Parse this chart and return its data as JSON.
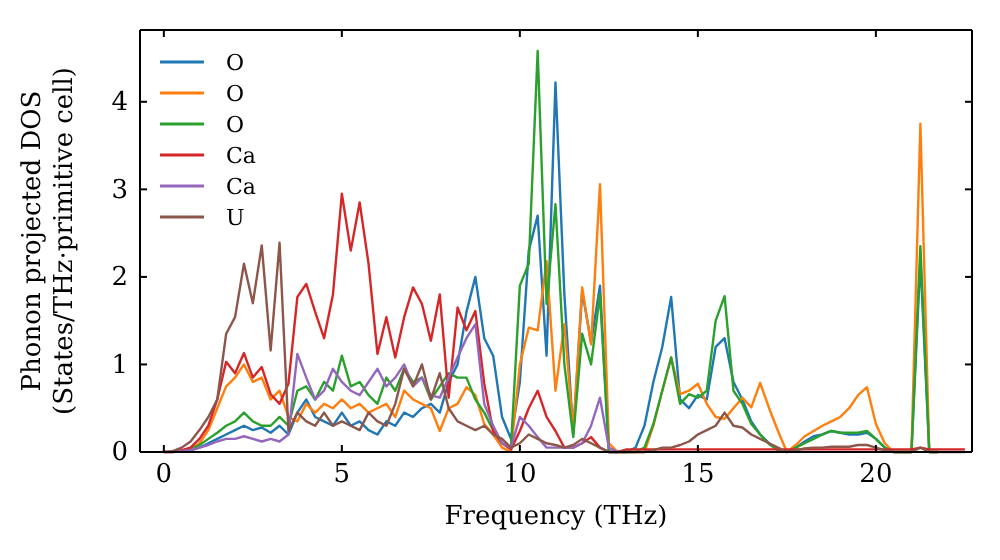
{
  "chart_data": {
    "type": "line",
    "xlabel": "Frequency (THz)",
    "ylabel": "Phonon projected DOS\n(States/THz·primitive cell)",
    "x": [
      0,
      0.25,
      0.5,
      0.75,
      1,
      1.25,
      1.5,
      1.75,
      2,
      2.25,
      2.5,
      2.75,
      3,
      3.25,
      3.5,
      3.75,
      4,
      4.25,
      4.5,
      4.75,
      5,
      5.25,
      5.5,
      5.75,
      6,
      6.25,
      6.5,
      6.75,
      7,
      7.25,
      7.5,
      7.75,
      8,
      8.25,
      8.5,
      8.75,
      9,
      9.25,
      9.5,
      9.75,
      10,
      10.25,
      10.5,
      10.75,
      11,
      11.25,
      11.5,
      11.75,
      12,
      12.25,
      12.5,
      12.75,
      13,
      13.25,
      13.5,
      13.75,
      14,
      14.25,
      14.5,
      14.75,
      15,
      15.25,
      15.5,
      15.75,
      16,
      16.25,
      16.5,
      16.75,
      17,
      17.25,
      17.5,
      17.75,
      18,
      18.25,
      18.5,
      18.75,
      19,
      19.25,
      19.5,
      19.75,
      20,
      20.25,
      20.5,
      20.75,
      21,
      21.25,
      21.5,
      21.75,
      22,
      22.25,
      22.5
    ],
    "series": [
      {
        "name": "O",
        "color": "#1f77b4",
        "values": [
          null,
          null,
          0.01,
          0.02,
          0.05,
          0.1,
          0.15,
          0.2,
          0.25,
          0.3,
          0.25,
          0.28,
          0.22,
          0.3,
          0.2,
          0.45,
          0.6,
          0.4,
          0.35,
          0.3,
          0.45,
          0.3,
          0.35,
          0.25,
          0.2,
          0.35,
          0.3,
          0.45,
          0.4,
          0.5,
          0.55,
          0.45,
          0.8,
          1.0,
          1.6,
          2.0,
          1.3,
          1.1,
          0.4,
          0.15,
          0.8,
          2.3,
          2.7,
          1.1,
          4.22,
          1.8,
          0.2,
          1.84,
          1.25,
          1.9,
          0,
          0,
          0,
          0.05,
          0.3,
          0.8,
          1.2,
          1.77,
          0.6,
          0.5,
          0.65,
          0.6,
          1.2,
          1.3,
          0.8,
          0.6,
          0.35,
          0.2,
          0.1,
          0.02,
          0,
          0.05,
          0.12,
          0.18,
          0.2,
          0.24,
          0.22,
          0.2,
          0.2,
          0.22,
          0.15,
          0.05,
          0,
          0,
          0,
          2.2,
          0,
          0,
          null,
          null,
          null
        ]
      },
      {
        "name": "O",
        "color": "#ff7f0e",
        "values": [
          null,
          null,
          0.01,
          0.03,
          0.1,
          0.25,
          0.5,
          0.75,
          0.85,
          1.0,
          0.8,
          0.85,
          0.6,
          0.7,
          0.4,
          0.35,
          0.55,
          0.45,
          0.55,
          0.5,
          0.6,
          0.5,
          0.55,
          0.45,
          0.5,
          0.55,
          0.4,
          0.7,
          0.6,
          0.55,
          0.5,
          0.24,
          0.5,
          0.55,
          0.74,
          0.65,
          0.32,
          0.2,
          0.05,
          0,
          1.0,
          1.42,
          1.39,
          2.18,
          0.7,
          1.46,
          0.24,
          1.88,
          1.23,
          3.06,
          0.1,
          0,
          0,
          0,
          0,
          0.3,
          0.7,
          1.08,
          0.66,
          0.7,
          0.78,
          0.55,
          0.4,
          0.38,
          0.5,
          0.62,
          0.51,
          0.79,
          0.5,
          0.24,
          0,
          0.08,
          0.18,
          0.24,
          0.3,
          0.35,
          0.4,
          0.5,
          0.65,
          0.74,
          0.32,
          0.1,
          0,
          0,
          0,
          3.75,
          0,
          0,
          null,
          null,
          null
        ]
      },
      {
        "name": "O",
        "color": "#2ca02c",
        "values": [
          null,
          null,
          0.01,
          0.03,
          0.08,
          0.15,
          0.22,
          0.3,
          0.35,
          0.45,
          0.35,
          0.3,
          0.3,
          0.4,
          0.3,
          0.7,
          0.75,
          0.6,
          0.8,
          0.7,
          1.1,
          0.75,
          0.8,
          0.65,
          0.55,
          0.85,
          0.7,
          0.95,
          0.8,
          0.85,
          0.6,
          0.75,
          0.9,
          0.85,
          0.85,
          0.6,
          0.45,
          0.25,
          0.1,
          0.05,
          1.9,
          2.15,
          4.58,
          1.69,
          2.83,
          1.0,
          0.17,
          1.35,
          1.0,
          1.8,
          0,
          0,
          0,
          0,
          0.05,
          0.32,
          0.7,
          1.08,
          0.55,
          0.66,
          0.62,
          0.7,
          1.5,
          1.78,
          0.7,
          0.55,
          0.32,
          0.2,
          0.09,
          0.02,
          0,
          0.05,
          0.1,
          0.15,
          0.2,
          0.24,
          0.22,
          0.22,
          0.22,
          0.24,
          0.15,
          0.05,
          0,
          0,
          0,
          2.35,
          0,
          0,
          null,
          null,
          null
        ]
      },
      {
        "name": "Ca",
        "color": "#d62728",
        "values": [
          0,
          0,
          0.02,
          0.05,
          0.15,
          0.3,
          0.6,
          1.03,
          0.9,
          1.13,
          0.85,
          0.97,
          0.66,
          0.55,
          0.78,
          1.77,
          1.92,
          1.6,
          1.3,
          1.8,
          2.95,
          2.3,
          2.85,
          2.15,
          1.12,
          1.54,
          1.08,
          1.54,
          1.88,
          1.69,
          1.27,
          1.8,
          0.62,
          1.65,
          1.39,
          1.61,
          0.78,
          0.24,
          0.1,
          0.03,
          0.24,
          0.5,
          0.7,
          0.4,
          0.24,
          0.05,
          0.05,
          0.1,
          0.17,
          0.05,
          0,
          0,
          0.03,
          0.03,
          0.03,
          0.03,
          0.03,
          0.03,
          0.03,
          0.03,
          0.03,
          0.03,
          0.03,
          0.03,
          0.03,
          0.03,
          0.03,
          0.03,
          0.03,
          0.03,
          0.03,
          0.03,
          0.03,
          0.03,
          0.03,
          0.03,
          0.03,
          0.03,
          0.03,
          0.03,
          0.03,
          0.03,
          0.03,
          0.03,
          0.03,
          0.05,
          0.03,
          0.03,
          0.03,
          0.03,
          0.03
        ]
      },
      {
        "name": "Ca",
        "color": "#9467bd",
        "values": [
          0,
          0,
          0.01,
          0.02,
          0.05,
          0.08,
          0.12,
          0.15,
          0.15,
          0.18,
          0.15,
          0.12,
          0.15,
          0.12,
          0.2,
          1.12,
          0.85,
          0.6,
          0.7,
          0.95,
          0.8,
          0.7,
          0.65,
          0.8,
          0.95,
          0.75,
          0.85,
          1.0,
          0.75,
          0.85,
          0.65,
          0.62,
          0.85,
          1.08,
          1.3,
          1.46,
          0.55,
          0.3,
          0.1,
          0.05,
          0.4,
          0.3,
          0.17,
          0.05,
          0.05,
          0.05,
          0.05,
          0.1,
          0.3,
          0.62,
          0.05,
          0,
          null,
          null,
          null,
          null,
          null,
          null,
          null,
          null,
          null,
          null,
          null,
          null,
          null,
          null,
          null,
          null,
          null,
          null,
          null,
          null,
          null,
          null,
          null,
          null,
          null,
          null,
          null,
          null,
          null,
          null,
          null,
          null,
          null,
          null,
          null,
          null,
          null,
          null,
          null
        ]
      },
      {
        "name": "U",
        "color": "#8c564b",
        "values": [
          0,
          0.01,
          0.05,
          0.12,
          0.25,
          0.4,
          0.6,
          1.35,
          1.54,
          2.15,
          1.7,
          2.36,
          1.16,
          2.39,
          0.24,
          0.45,
          0.35,
          0.3,
          0.45,
          0.3,
          0.35,
          0.3,
          0.25,
          0.45,
          0.35,
          0.3,
          0.55,
          0.95,
          0.75,
          1.0,
          0.6,
          0.9,
          0.5,
          0.35,
          0.3,
          0.25,
          0.3,
          0.2,
          0.15,
          0.05,
          0.1,
          0.2,
          0.15,
          0.1,
          0.08,
          0.05,
          0.08,
          0.15,
          0.1,
          0.05,
          0,
          0,
          0,
          0,
          0,
          0.02,
          0.05,
          0.05,
          0.08,
          0.12,
          0.2,
          0.25,
          0.3,
          0.45,
          0.3,
          0.28,
          0.2,
          0.15,
          0.1,
          0.05,
          0,
          0.02,
          0.04,
          0.05,
          0.05,
          0.06,
          0.06,
          0.06,
          0.08,
          0.08,
          0.05,
          0.02,
          0,
          0,
          0,
          0.05,
          0,
          0,
          0,
          0,
          0
        ]
      }
    ],
    "xlim": [
      -0.67,
      22.7
    ],
    "ylim": [
      0,
      4.82
    ],
    "xticks": [
      0,
      5,
      10,
      15,
      20
    ],
    "yticks": [
      0,
      1,
      2,
      3,
      4
    ],
    "legend": "top left",
    "grid": false,
    "marker": "none",
    "line_style": "solid"
  }
}
